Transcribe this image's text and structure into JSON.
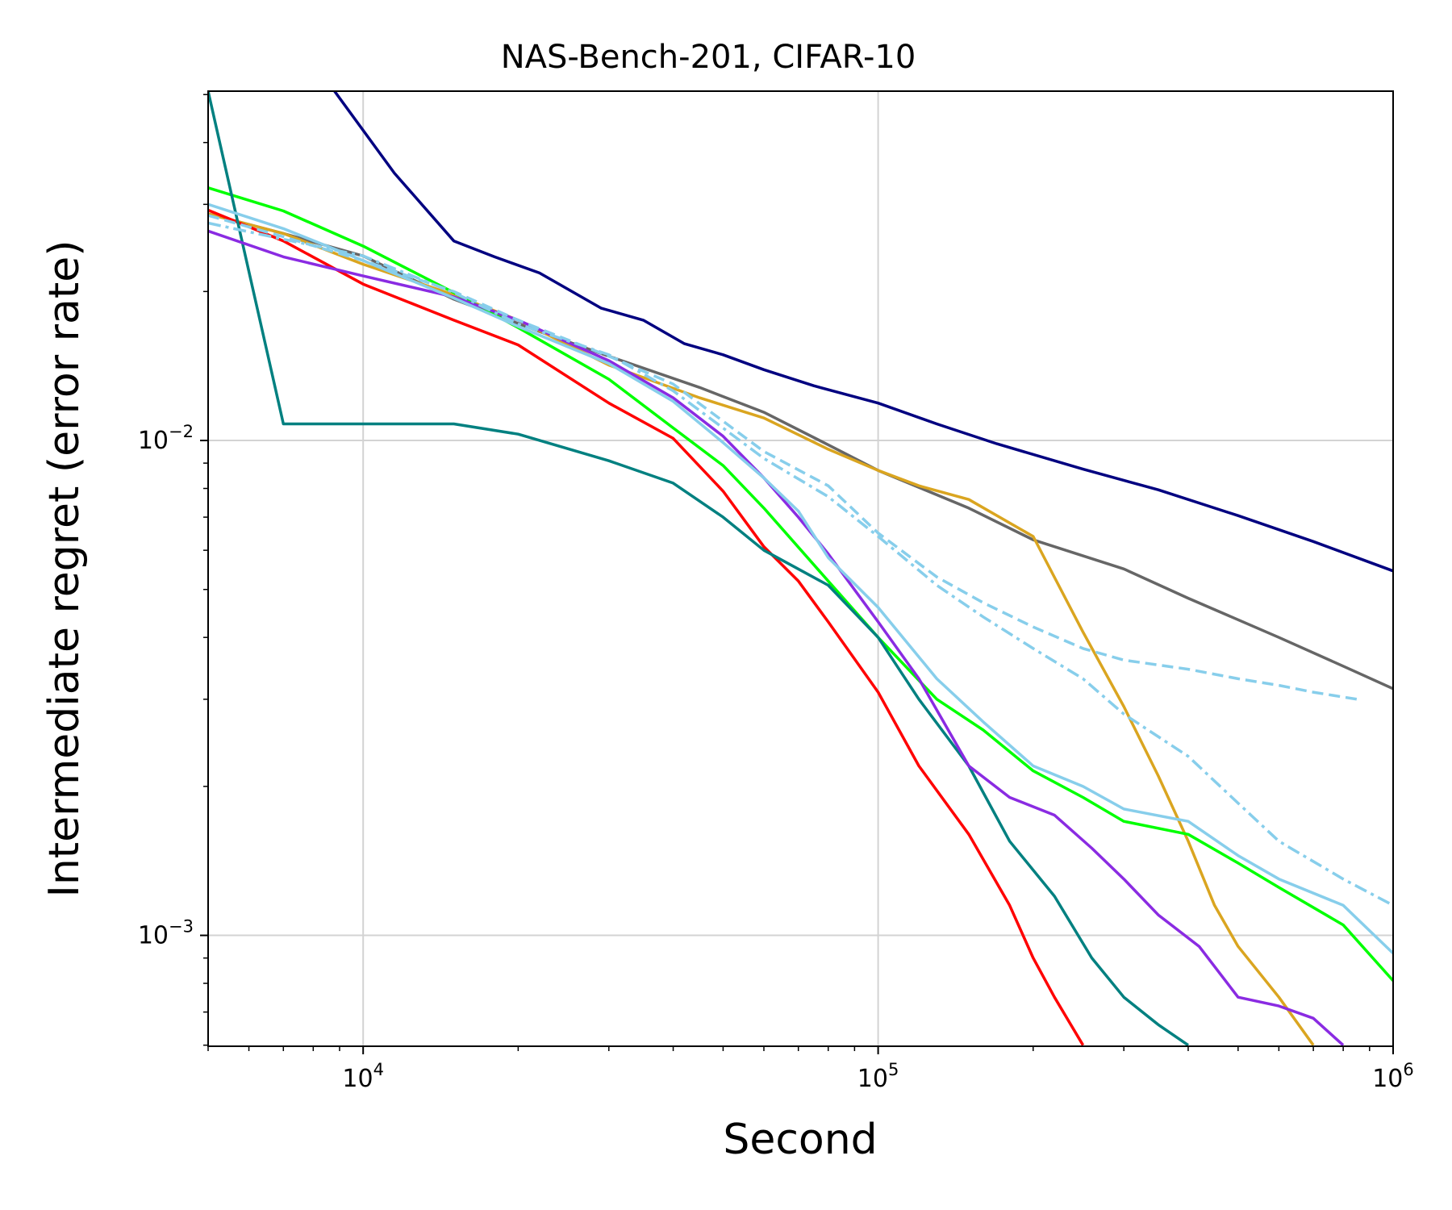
{
  "chart_data": {
    "type": "line",
    "title": "NAS-Bench-201, CIFAR-10",
    "xlabel": "Second",
    "ylabel": "Intermediate regret (error rate)",
    "xscale": "log",
    "yscale": "log",
    "xlim": [
      5000,
      1000000
    ],
    "ylim": [
      0.000597,
      0.0508
    ],
    "grid": true,
    "legend": "none",
    "x_ticks": [
      {
        "value": 10000,
        "base": "10",
        "exp": "4"
      },
      {
        "value": 100000,
        "base": "10",
        "exp": "5"
      },
      {
        "value": 1000000,
        "base": "10",
        "exp": "6"
      }
    ],
    "y_ticks": [
      {
        "value": 0.001,
        "base": "10",
        "exp": "−3"
      },
      {
        "value": 0.01,
        "base": "10",
        "exp": "−2"
      }
    ],
    "series": [
      {
        "name": "navy",
        "color": "#000080",
        "dash": "solid",
        "points": [
          [
            8800,
            0.0508
          ],
          [
            11500,
            0.0347
          ],
          [
            15000,
            0.0253
          ],
          [
            18000,
            0.0235
          ],
          [
            22000,
            0.0218
          ],
          [
            29000,
            0.0185
          ],
          [
            35000,
            0.0175
          ],
          [
            42000,
            0.0157
          ],
          [
            50000,
            0.0149
          ],
          [
            60000,
            0.0139
          ],
          [
            75000,
            0.0129
          ],
          [
            100000,
            0.0119
          ],
          [
            130000,
            0.0108
          ],
          [
            170000,
            0.00985
          ],
          [
            250000,
            0.00875
          ],
          [
            350000,
            0.00795
          ],
          [
            500000,
            0.00705
          ],
          [
            700000,
            0.00625
          ],
          [
            1000000,
            0.00545
          ]
        ]
      },
      {
        "name": "gray",
        "color": "#666666",
        "dash": "solid",
        "points": [
          [
            5000,
            0.0287
          ],
          [
            7000,
            0.0262
          ],
          [
            10000,
            0.0236
          ],
          [
            15000,
            0.0193
          ],
          [
            22000,
            0.0166
          ],
          [
            30000,
            0.0148
          ],
          [
            45000,
            0.0128
          ],
          [
            60000,
            0.0114
          ],
          [
            80000,
            0.0098
          ],
          [
            100000,
            0.0087
          ],
          [
            150000,
            0.0073
          ],
          [
            200000,
            0.0063
          ],
          [
            300000,
            0.0055
          ],
          [
            400000,
            0.0048
          ],
          [
            600000,
            0.004
          ],
          [
            800000,
            0.0035
          ],
          [
            1000000,
            0.00315
          ]
        ]
      },
      {
        "name": "goldenrod",
        "color": "#DAA520",
        "dash": "solid",
        "points": [
          [
            5000,
            0.0287
          ],
          [
            7000,
            0.0262
          ],
          [
            10000,
            0.0227
          ],
          [
            15000,
            0.0197
          ],
          [
            20000,
            0.0175
          ],
          [
            30000,
            0.0142
          ],
          [
            45000,
            0.0122
          ],
          [
            60000,
            0.0111
          ],
          [
            80000,
            0.0096
          ],
          [
            100000,
            0.0087
          ],
          [
            120000,
            0.0081
          ],
          [
            150000,
            0.0076
          ],
          [
            200000,
            0.0064
          ],
          [
            250000,
            0.0041
          ],
          [
            300000,
            0.0029
          ],
          [
            350000,
            0.0021
          ],
          [
            400000,
            0.00155
          ],
          [
            450000,
            0.00115
          ],
          [
            500000,
            0.00095
          ],
          [
            600000,
            0.00075
          ],
          [
            700000,
            0.0006
          ]
        ]
      },
      {
        "name": "lime",
        "color": "#00FF00",
        "dash": "solid",
        "points": [
          [
            5000,
            0.0324
          ],
          [
            7000,
            0.0291
          ],
          [
            10000,
            0.0247
          ],
          [
            15000,
            0.0199
          ],
          [
            20000,
            0.0169
          ],
          [
            30000,
            0.0133
          ],
          [
            40000,
            0.0106
          ],
          [
            50000,
            0.0089
          ],
          [
            60000,
            0.0073
          ],
          [
            80000,
            0.0052
          ],
          [
            100000,
            0.004
          ],
          [
            130000,
            0.003
          ],
          [
            160000,
            0.0026
          ],
          [
            200000,
            0.00215
          ],
          [
            250000,
            0.0019
          ],
          [
            300000,
            0.0017
          ],
          [
            400000,
            0.0016
          ],
          [
            500000,
            0.0014
          ],
          [
            600000,
            0.00125
          ],
          [
            800000,
            0.00105
          ],
          [
            1000000,
            0.00081
          ]
        ]
      },
      {
        "name": "red",
        "color": "#FF0000",
        "dash": "solid",
        "points": [
          [
            5000,
            0.0292
          ],
          [
            7000,
            0.0253
          ],
          [
            10000,
            0.0207
          ],
          [
            15000,
            0.0175
          ],
          [
            20000,
            0.0156
          ],
          [
            30000,
            0.0119
          ],
          [
            40000,
            0.0101
          ],
          [
            50000,
            0.0079
          ],
          [
            60000,
            0.0061
          ],
          [
            70000,
            0.0052
          ],
          [
            80000,
            0.0043
          ],
          [
            100000,
            0.0031
          ],
          [
            120000,
            0.0022
          ],
          [
            150000,
            0.0016
          ],
          [
            180000,
            0.00115
          ],
          [
            200000,
            0.0009
          ],
          [
            220000,
            0.00075
          ],
          [
            250000,
            0.0006
          ]
        ]
      },
      {
        "name": "teal",
        "color": "#008080",
        "dash": "solid",
        "points": [
          [
            5000,
            0.0508
          ],
          [
            7000,
            0.0108
          ],
          [
            10000,
            0.0108
          ],
          [
            15000,
            0.0108
          ],
          [
            20000,
            0.0103
          ],
          [
            30000,
            0.0091
          ],
          [
            40000,
            0.0082
          ],
          [
            50000,
            0.007
          ],
          [
            60000,
            0.006
          ],
          [
            80000,
            0.0051
          ],
          [
            100000,
            0.004
          ],
          [
            120000,
            0.003
          ],
          [
            150000,
            0.0022
          ],
          [
            180000,
            0.00155
          ],
          [
            220000,
            0.0012
          ],
          [
            260000,
            0.0009
          ],
          [
            300000,
            0.00075
          ],
          [
            350000,
            0.00066
          ],
          [
            400000,
            0.0006
          ]
        ]
      },
      {
        "name": "blueviolet",
        "color": "#8A2BE2",
        "dash": "solid",
        "points": [
          [
            5000,
            0.0265
          ],
          [
            7000,
            0.0235
          ],
          [
            10000,
            0.0215
          ],
          [
            15000,
            0.0195
          ],
          [
            20000,
            0.0175
          ],
          [
            30000,
            0.0145
          ],
          [
            40000,
            0.0122
          ],
          [
            50000,
            0.0102
          ],
          [
            60000,
            0.0084
          ],
          [
            70000,
            0.007
          ],
          [
            80000,
            0.0059
          ],
          [
            100000,
            0.0043
          ],
          [
            120000,
            0.0033
          ],
          [
            150000,
            0.0022
          ],
          [
            180000,
            0.0019
          ],
          [
            220000,
            0.00175
          ],
          [
            260000,
            0.0015
          ],
          [
            300000,
            0.0013
          ],
          [
            350000,
            0.0011
          ],
          [
            420000,
            0.00095
          ],
          [
            500000,
            0.00075
          ],
          [
            600000,
            0.00072
          ],
          [
            700000,
            0.00068
          ],
          [
            800000,
            0.0006
          ]
        ]
      },
      {
        "name": "skyblue",
        "color": "#87CEEB",
        "dash": "solid",
        "points": [
          [
            5000,
            0.03
          ],
          [
            7000,
            0.0268
          ],
          [
            10000,
            0.0231
          ],
          [
            15000,
            0.0194
          ],
          [
            20000,
            0.017
          ],
          [
            30000,
            0.0143
          ],
          [
            40000,
            0.012
          ],
          [
            50000,
            0.0099
          ],
          [
            60000,
            0.0084
          ],
          [
            70000,
            0.0072
          ],
          [
            80000,
            0.0058
          ],
          [
            100000,
            0.0046
          ],
          [
            130000,
            0.0033
          ],
          [
            160000,
            0.0027
          ],
          [
            200000,
            0.0022
          ],
          [
            250000,
            0.002
          ],
          [
            300000,
            0.0018
          ],
          [
            400000,
            0.0017
          ],
          [
            500000,
            0.00145
          ],
          [
            600000,
            0.0013
          ],
          [
            800000,
            0.00115
          ],
          [
            1000000,
            0.00092
          ]
        ]
      },
      {
        "name": "skyblue-dashed",
        "color": "#87CEEB",
        "dash": "dashed",
        "points": [
          [
            5000,
            0.0285
          ],
          [
            7000,
            0.0258
          ],
          [
            10000,
            0.0231
          ],
          [
            15000,
            0.02
          ],
          [
            20000,
            0.0175
          ],
          [
            30000,
            0.0148
          ],
          [
            40000,
            0.013
          ],
          [
            60000,
            0.0095
          ],
          [
            80000,
            0.0081
          ],
          [
            100000,
            0.0065
          ],
          [
            130000,
            0.0053
          ],
          [
            160000,
            0.0047
          ],
          [
            200000,
            0.0042
          ],
          [
            250000,
            0.0038
          ],
          [
            300000,
            0.0036
          ],
          [
            400000,
            0.00345
          ],
          [
            500000,
            0.0033
          ],
          [
            600000,
            0.0032
          ],
          [
            700000,
            0.0031
          ],
          [
            850000,
            0.003
          ]
        ]
      },
      {
        "name": "skyblue-dashdot",
        "color": "#87CEEB",
        "dash": "dashdot",
        "points": [
          [
            5000,
            0.0275
          ],
          [
            7000,
            0.0255
          ],
          [
            10000,
            0.0236
          ],
          [
            15000,
            0.0199
          ],
          [
            20000,
            0.0172
          ],
          [
            30000,
            0.0149
          ],
          [
            40000,
            0.0126
          ],
          [
            60000,
            0.0092
          ],
          [
            80000,
            0.0077
          ],
          [
            100000,
            0.0064
          ],
          [
            130000,
            0.0051
          ],
          [
            160000,
            0.0044
          ],
          [
            200000,
            0.0038
          ],
          [
            250000,
            0.0033
          ],
          [
            300000,
            0.0028
          ],
          [
            400000,
            0.0023
          ],
          [
            500000,
            0.00185
          ],
          [
            600000,
            0.00155
          ],
          [
            800000,
            0.0013
          ],
          [
            1000000,
            0.00115
          ]
        ]
      }
    ]
  }
}
